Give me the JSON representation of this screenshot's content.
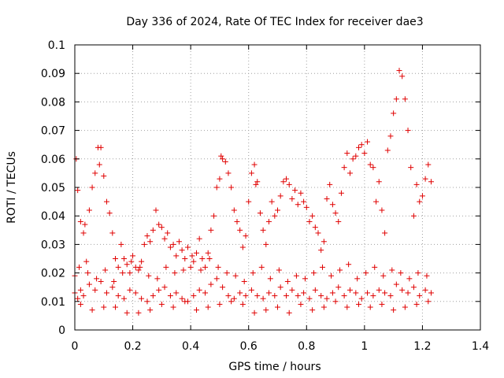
{
  "chart_data": {
    "type": "scatter",
    "title": "Day 336 of 2024, Rate Of TEC Index for receiver dae3",
    "xlabel": "GPS time / hours",
    "ylabel": "ROTI / TECUs",
    "xlim": [
      0,
      1.4
    ],
    "ylim": [
      0,
      0.1
    ],
    "x_ticks": [
      0,
      0.2,
      0.4,
      0.6,
      0.8,
      1,
      1.2,
      1.4
    ],
    "x_tick_labels": [
      "0",
      "0.2",
      "0.4",
      "0.6",
      "0.8",
      "1",
      "1.2",
      "1.4"
    ],
    "y_ticks": [
      0,
      0.01,
      0.02,
      0.03,
      0.04,
      0.05,
      0.06,
      0.07,
      0.08,
      0.09,
      0.1
    ],
    "y_tick_labels": [
      "0",
      "0.01",
      "0.02",
      "0.03",
      "0.04",
      "0.05",
      "0.06",
      "0.07",
      "0.08",
      "0.09",
      "0.1"
    ],
    "grid": true,
    "marker": "+",
    "color": "#e00000",
    "series": [
      {
        "name": "ROTI",
        "x": [
          0.0,
          0.005,
          0.01,
          0.02,
          0.03,
          0.035,
          0.04,
          0.05,
          0.06,
          0.07,
          0.08,
          0.085,
          0.09,
          0.1,
          0.11,
          0.12,
          0.13,
          0.14,
          0.15,
          0.16,
          0.17,
          0.18,
          0.19,
          0.2,
          0.21,
          0.22,
          0.23,
          0.24,
          0.25,
          0.26,
          0.27,
          0.28,
          0.29,
          0.3,
          0.31,
          0.32,
          0.33,
          0.34,
          0.35,
          0.36,
          0.37,
          0.38,
          0.39,
          0.4,
          0.41,
          0.42,
          0.43,
          0.44,
          0.45,
          0.46,
          0.47,
          0.48,
          0.49,
          0.5,
          0.505,
          0.51,
          0.52,
          0.53,
          0.54,
          0.55,
          0.56,
          0.57,
          0.58,
          0.59,
          0.6,
          0.61,
          0.62,
          0.625,
          0.63,
          0.64,
          0.65,
          0.66,
          0.67,
          0.68,
          0.69,
          0.7,
          0.71,
          0.72,
          0.73,
          0.74,
          0.75,
          0.76,
          0.77,
          0.78,
          0.79,
          0.8,
          0.81,
          0.82,
          0.83,
          0.84,
          0.85,
          0.86,
          0.87,
          0.88,
          0.89,
          0.9,
          0.91,
          0.92,
          0.93,
          0.94,
          0.95,
          0.96,
          0.97,
          0.98,
          0.99,
          1.0,
          1.01,
          1.02,
          1.03,
          1.04,
          1.05,
          1.06,
          1.07,
          1.08,
          1.09,
          1.1,
          1.11,
          1.12,
          1.13,
          1.14,
          1.15,
          1.16,
          1.17,
          1.18,
          1.19,
          1.2,
          1.21,
          1.22,
          1.23,
          0.0,
          0.01,
          0.02,
          0.03,
          0.05,
          0.07,
          0.09,
          0.11,
          0.13,
          0.15,
          0.17,
          0.19,
          0.21,
          0.23,
          0.25,
          0.27,
          0.29,
          0.31,
          0.33,
          0.35,
          0.37,
          0.39,
          0.41,
          0.43,
          0.45,
          0.47,
          0.49,
          0.51,
          0.53,
          0.55,
          0.57,
          0.59,
          0.61,
          0.63,
          0.65,
          0.67,
          0.69,
          0.71,
          0.73,
          0.75,
          0.77,
          0.79,
          0.81,
          0.83,
          0.85,
          0.87,
          0.89,
          0.91,
          0.93,
          0.95,
          0.97,
          0.99,
          1.01,
          1.03,
          1.05,
          1.07,
          1.09,
          1.11,
          1.13,
          1.15,
          1.17,
          1.19,
          1.21,
          1.23,
          0.02,
          0.06,
          0.1,
          0.14,
          0.18,
          0.22,
          0.26,
          0.3,
          0.34,
          0.38,
          0.42,
          0.46,
          0.5,
          0.54,
          0.58,
          0.62,
          0.66,
          0.7,
          0.74,
          0.78,
          0.82,
          0.86,
          0.9,
          0.94,
          0.98,
          1.02,
          1.06,
          1.1,
          1.14,
          1.18,
          1.22,
          0.015,
          0.045,
          0.075,
          0.105,
          0.135,
          0.165,
          0.195,
          0.225,
          0.255,
          0.285,
          0.315,
          0.345,
          0.375,
          0.405,
          0.435,
          0.465,
          0.495,
          0.525,
          0.555,
          0.585,
          0.615,
          0.645,
          0.675,
          0.705,
          0.735,
          0.765,
          0.795,
          0.825,
          0.855,
          0.885,
          0.915,
          0.945,
          0.975,
          1.005,
          1.035,
          1.065,
          1.095,
          1.125,
          1.155,
          1.185,
          1.215
        ],
        "y": [
          0.019,
          0.06,
          0.049,
          0.038,
          0.034,
          0.037,
          0.024,
          0.042,
          0.05,
          0.055,
          0.064,
          0.058,
          0.064,
          0.054,
          0.045,
          0.041,
          0.034,
          0.025,
          0.022,
          0.03,
          0.025,
          0.023,
          0.02,
          0.026,
          0.022,
          0.021,
          0.024,
          0.03,
          0.033,
          0.031,
          0.035,
          0.042,
          0.037,
          0.036,
          0.032,
          0.034,
          0.029,
          0.03,
          0.026,
          0.031,
          0.028,
          0.025,
          0.029,
          0.022,
          0.024,
          0.027,
          0.032,
          0.025,
          0.022,
          0.027,
          0.035,
          0.04,
          0.05,
          0.053,
          0.061,
          0.06,
          0.059,
          0.055,
          0.05,
          0.042,
          0.038,
          0.035,
          0.029,
          0.033,
          0.045,
          0.055,
          0.058,
          0.051,
          0.052,
          0.041,
          0.035,
          0.03,
          0.038,
          0.045,
          0.04,
          0.042,
          0.047,
          0.052,
          0.053,
          0.051,
          0.046,
          0.049,
          0.044,
          0.048,
          0.045,
          0.043,
          0.038,
          0.04,
          0.036,
          0.034,
          0.028,
          0.031,
          0.046,
          0.051,
          0.044,
          0.041,
          0.038,
          0.048,
          0.057,
          0.062,
          0.055,
          0.06,
          0.061,
          0.064,
          0.065,
          0.062,
          0.066,
          0.058,
          0.057,
          0.045,
          0.052,
          0.042,
          0.034,
          0.063,
          0.068,
          0.076,
          0.081,
          0.091,
          0.089,
          0.081,
          0.07,
          0.057,
          0.04,
          0.051,
          0.045,
          0.047,
          0.053,
          0.058,
          0.052,
          0.013,
          0.011,
          0.014,
          0.012,
          0.016,
          0.014,
          0.017,
          0.013,
          0.015,
          0.012,
          0.011,
          0.014,
          0.013,
          0.011,
          0.01,
          0.012,
          0.014,
          0.015,
          0.012,
          0.013,
          0.011,
          0.01,
          0.012,
          0.014,
          0.013,
          0.016,
          0.018,
          0.015,
          0.012,
          0.011,
          0.013,
          0.012,
          0.014,
          0.012,
          0.011,
          0.013,
          0.012,
          0.015,
          0.012,
          0.014,
          0.012,
          0.013,
          0.011,
          0.014,
          0.012,
          0.011,
          0.013,
          0.015,
          0.012,
          0.014,
          0.013,
          0.011,
          0.013,
          0.012,
          0.014,
          0.013,
          0.012,
          0.016,
          0.014,
          0.013,
          0.015,
          0.012,
          0.014,
          0.013,
          0.009,
          0.007,
          0.008,
          0.008,
          0.006,
          0.006,
          0.007,
          0.009,
          0.008,
          0.01,
          0.007,
          0.008,
          0.009,
          0.01,
          0.009,
          0.006,
          0.007,
          0.008,
          0.006,
          0.009,
          0.007,
          0.008,
          0.01,
          0.008,
          0.009,
          0.008,
          0.009,
          0.007,
          0.008,
          0.009,
          0.01,
          0.022,
          0.02,
          0.018,
          0.021,
          0.017,
          0.02,
          0.024,
          0.022,
          0.019,
          0.018,
          0.022,
          0.02,
          0.021,
          0.026,
          0.021,
          0.025,
          0.022,
          0.02,
          0.019,
          0.017,
          0.02,
          0.022,
          0.018,
          0.021,
          0.017,
          0.019,
          0.018,
          0.02,
          0.022,
          0.019,
          0.021,
          0.023,
          0.018,
          0.02,
          0.022,
          0.019,
          0.021,
          0.02,
          0.018,
          0.02,
          0.019
        ]
      }
    ]
  }
}
